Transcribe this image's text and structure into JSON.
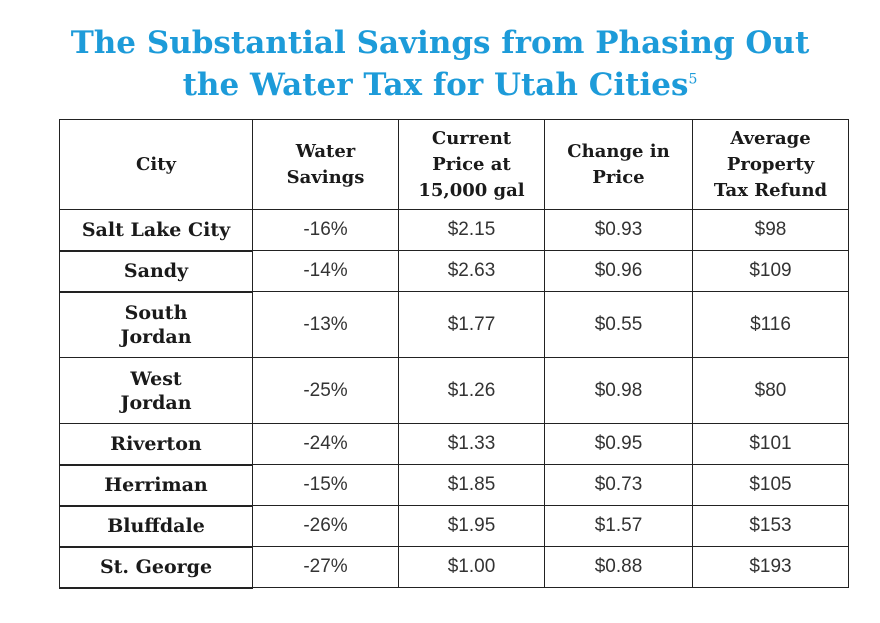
{
  "title": {
    "line1": "The Substantial Savings from Phasing Out",
    "line2": "the Water Tax for Utah Cities",
    "footnote": "5"
  },
  "colors": {
    "title": "#1d9bd9",
    "border": "#222222",
    "text": "#1a1a1a"
  },
  "table": {
    "headers": [
      "City",
      "Water\nSavings",
      "Current\nPrice at\n15,000 gal",
      "Change in\nPrice",
      "Average\nProperty\nTax Refund"
    ],
    "rows": [
      {
        "city": "Salt Lake City",
        "water_savings": "-16%",
        "current_price": "$2.15",
        "change_in_price": "$0.93",
        "tax_refund": "$98"
      },
      {
        "city": "Sandy",
        "water_savings": "-14%",
        "current_price": "$2.63",
        "change_in_price": "$0.96",
        "tax_refund": "$109"
      },
      {
        "city": "South\nJordan",
        "water_savings": "-13%",
        "current_price": "$1.77",
        "change_in_price": "$0.55",
        "tax_refund": "$116"
      },
      {
        "city": "West\nJordan",
        "water_savings": "-25%",
        "current_price": "$1.26",
        "change_in_price": "$0.98",
        "tax_refund": "$80"
      },
      {
        "city": "Riverton",
        "water_savings": "-24%",
        "current_price": "$1.33",
        "change_in_price": "$0.95",
        "tax_refund": "$101"
      },
      {
        "city": "Herriman",
        "water_savings": "-15%",
        "current_price": "$1.85",
        "change_in_price": "$0.73",
        "tax_refund": "$105"
      },
      {
        "city": "Bluffdale",
        "water_savings": "-26%",
        "current_price": "$1.95",
        "change_in_price": "$1.57",
        "tax_refund": "$153"
      },
      {
        "city": "St. George",
        "water_savings": "-27%",
        "current_price": "$1.00",
        "change_in_price": "$0.88",
        "tax_refund": "$193"
      }
    ]
  }
}
